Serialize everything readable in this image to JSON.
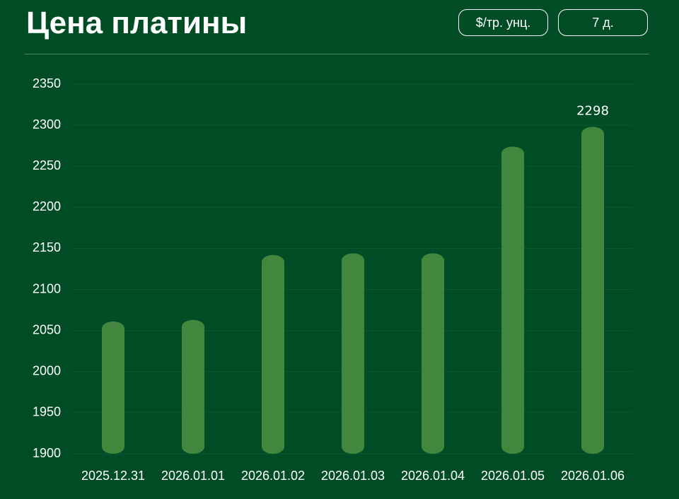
{
  "header": {
    "title": "Цена платины",
    "buttons": [
      "$/тр. унц.",
      "7 д."
    ]
  },
  "chart_data": {
    "type": "bar",
    "categories": [
      "2025.12.31",
      "2026.01.01",
      "2026.01.02",
      "2026.01.03",
      "2026.01.04",
      "2026.01.05",
      "2026.01.06"
    ],
    "values": [
      2061,
      2063,
      2142,
      2144,
      2144,
      2274,
      2298
    ],
    "color": "#43873f",
    "ylim": [
      1900,
      2350
    ],
    "yticks": [
      1900,
      1950,
      2000,
      2050,
      2100,
      2150,
      2200,
      2250,
      2300,
      2350
    ],
    "grid": true
  }
}
